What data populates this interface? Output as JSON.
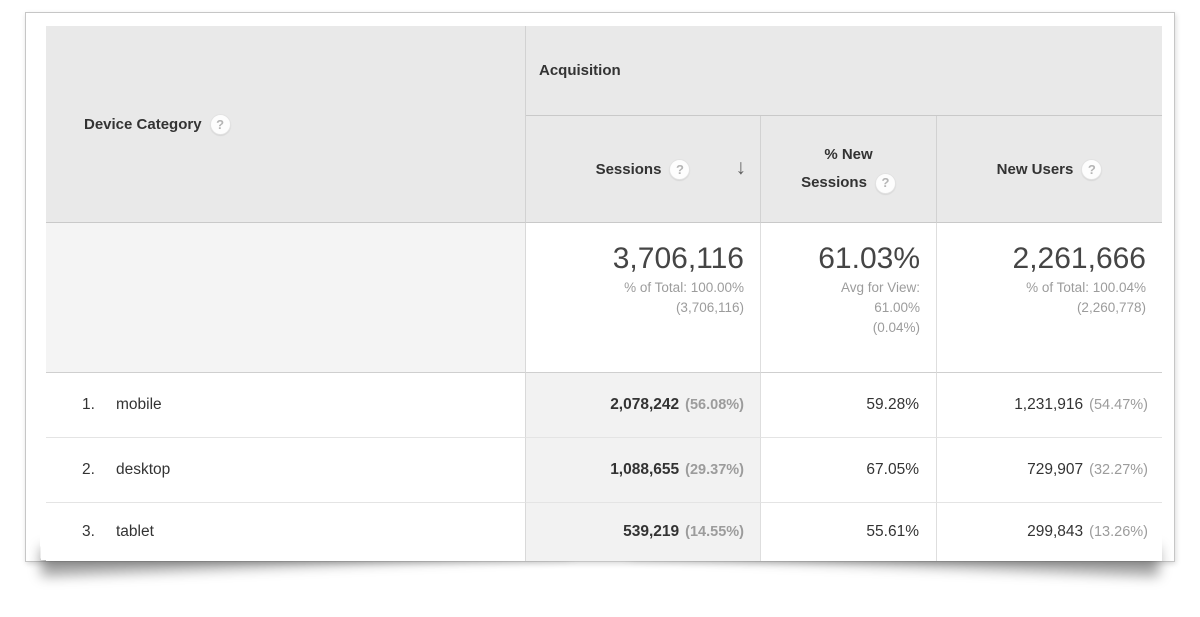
{
  "table": {
    "dimension_header": {
      "label": "Device Category"
    },
    "group_header": {
      "label": "Acquisition"
    },
    "columns": {
      "sessions": {
        "label": "Sessions",
        "sort": "descending"
      },
      "new_sessions": {
        "label": "% New Sessions"
      },
      "new_users": {
        "label": "New Users"
      }
    },
    "summary": {
      "sessions": {
        "value": "3,706,116",
        "sub1": "% of Total: 100.00%",
        "sub2": "(3,706,116)"
      },
      "new_sessions": {
        "value": "61.03%",
        "sub1": "Avg for View:",
        "sub2": "61.00%",
        "sub3": "(0.04%)"
      },
      "new_users": {
        "value": "2,261,666",
        "sub1": "% of Total: 100.04%",
        "sub2": "(2,260,778)"
      }
    },
    "rows": [
      {
        "rank": "1.",
        "device": "mobile",
        "sessions": "2,078,242",
        "sessions_pct": "(56.08%)",
        "new_sessions": "59.28%",
        "new_users": "1,231,916",
        "new_users_pct": "(54.47%)"
      },
      {
        "rank": "2.",
        "device": "desktop",
        "sessions": "1,088,655",
        "sessions_pct": "(29.37%)",
        "new_sessions": "67.05%",
        "new_users": "729,907",
        "new_users_pct": "(32.27%)"
      },
      {
        "rank": "3.",
        "device": "tablet",
        "sessions": "539,219",
        "sessions_pct": "(14.55%)",
        "new_sessions": "55.61%",
        "new_users": "299,843",
        "new_users_pct": "(13.26%)"
      }
    ]
  },
  "icons": {
    "help": "?",
    "sort_desc": "↓"
  },
  "colors": {
    "header_bg": "#e9e9e9",
    "sorted_column_bg": "#f2f2f2",
    "summary_dimension_bg": "#f4f4f4",
    "text_dark": "#333333",
    "text_gray": "#9c9c9c"
  }
}
